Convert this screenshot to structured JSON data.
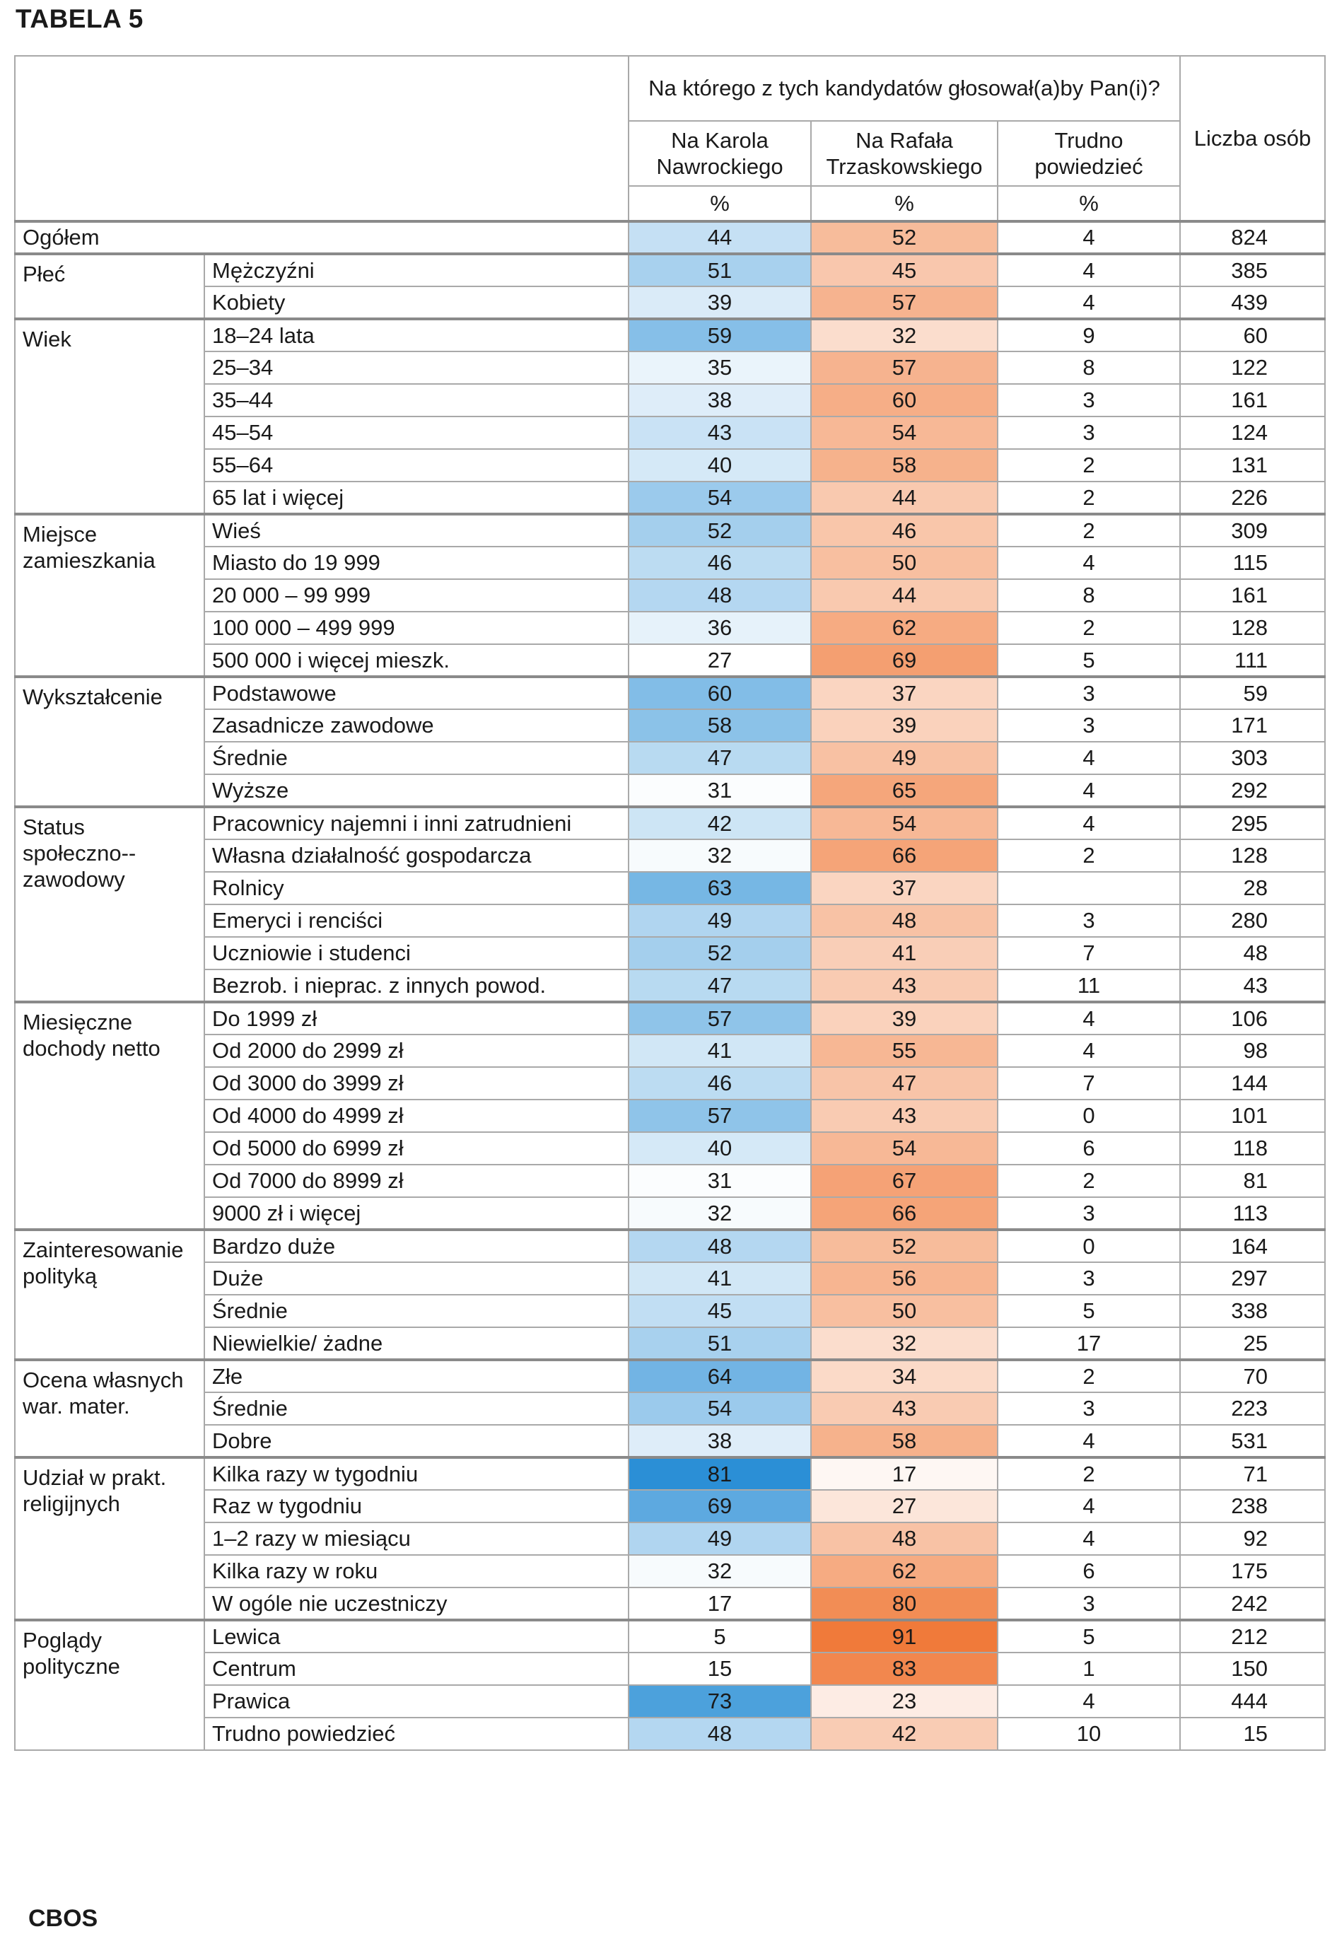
{
  "title": "TABELA 5",
  "footer": "CBOS",
  "header": {
    "question": "Na którego z tych kandydatów głosował(a)by Pan(i)?",
    "col_nawrocki": "Na Karola Nawrockiego",
    "col_trzaskowski": "Na Rafała Trzaskowskiego",
    "col_trudno": "Trudno powiedzieć",
    "col_liczba": "Liczba osób",
    "unit": "%"
  },
  "colors": {
    "blue_max": "#2b8fd6",
    "orange_max": "#f07a3a",
    "border": "#a9a9a9"
  },
  "overall": {
    "label": "Ogółem",
    "nawrocki": 44,
    "trzaskowski": 52,
    "trudno": "4",
    "liczba": 824
  },
  "groups": [
    {
      "category": "Płeć",
      "rows": [
        {
          "label": "Mężczyźni",
          "nawrocki": 51,
          "trzaskowski": 45,
          "trudno": "4",
          "liczba": 385
        },
        {
          "label": "Kobiety",
          "nawrocki": 39,
          "trzaskowski": 57,
          "trudno": "4",
          "liczba": 439
        }
      ]
    },
    {
      "category": "Wiek",
      "rows": [
        {
          "label": "18–24 lata",
          "nawrocki": 59,
          "trzaskowski": 32,
          "trudno": "9",
          "liczba": 60
        },
        {
          "label": "25–34",
          "nawrocki": 35,
          "trzaskowski": 57,
          "trudno": "8",
          "liczba": 122
        },
        {
          "label": "35–44",
          "nawrocki": 38,
          "trzaskowski": 60,
          "trudno": "3",
          "liczba": 161
        },
        {
          "label": "45–54",
          "nawrocki": 43,
          "trzaskowski": 54,
          "trudno": "3",
          "liczba": 124
        },
        {
          "label": "55–64",
          "nawrocki": 40,
          "trzaskowski": 58,
          "trudno": "2",
          "liczba": 131
        },
        {
          "label": "65 lat i więcej",
          "nawrocki": 54,
          "trzaskowski": 44,
          "trudno": "2",
          "liczba": 226
        }
      ]
    },
    {
      "category": "Miejsce zamieszkania",
      "rows": [
        {
          "label": "Wieś",
          "nawrocki": 52,
          "trzaskowski": 46,
          "trudno": "2",
          "liczba": 309
        },
        {
          "label": "Miasto do 19 999",
          "nawrocki": 46,
          "trzaskowski": 50,
          "trudno": "4",
          "liczba": 115
        },
        {
          "label": "20 000 – 99 999",
          "nawrocki": 48,
          "trzaskowski": 44,
          "trudno": "8",
          "liczba": 161
        },
        {
          "label": "100 000 – 499 999",
          "nawrocki": 36,
          "trzaskowski": 62,
          "trudno": "2",
          "liczba": 128
        },
        {
          "label": "500 000 i więcej mieszk.",
          "nawrocki": 27,
          "trzaskowski": 69,
          "trudno": "5",
          "liczba": 111
        }
      ]
    },
    {
      "category": "Wykształcenie",
      "rows": [
        {
          "label": "Podstawowe",
          "nawrocki": 60,
          "trzaskowski": 37,
          "trudno": "3",
          "liczba": 59
        },
        {
          "label": "Zasadnicze zawodowe",
          "nawrocki": 58,
          "trzaskowski": 39,
          "trudno": "3",
          "liczba": 171
        },
        {
          "label": "Średnie",
          "nawrocki": 47,
          "trzaskowski": 49,
          "trudno": "4",
          "liczba": 303
        },
        {
          "label": "Wyższe",
          "nawrocki": 31,
          "trzaskowski": 65,
          "trudno": "4",
          "liczba": 292
        }
      ]
    },
    {
      "category": "Status społeczno--zawodowy",
      "rows": [
        {
          "label": "Pracownicy najemni i inni zatrudnieni",
          "nawrocki": 42,
          "trzaskowski": 54,
          "trudno": "4",
          "liczba": 295
        },
        {
          "label": "Własna działalność gospodarcza",
          "nawrocki": 32,
          "trzaskowski": 66,
          "trudno": "2",
          "liczba": 128
        },
        {
          "label": "Rolnicy",
          "nawrocki": 63,
          "trzaskowski": 37,
          "trudno": "",
          "liczba": 28
        },
        {
          "label": "Emeryci i renciści",
          "nawrocki": 49,
          "trzaskowski": 48,
          "trudno": "3",
          "liczba": 280
        },
        {
          "label": "Uczniowie i studenci",
          "nawrocki": 52,
          "trzaskowski": 41,
          "trudno": "7",
          "liczba": 48
        },
        {
          "label": "Bezrob. i nieprac. z innych powod.",
          "nawrocki": 47,
          "trzaskowski": 43,
          "trudno": "11",
          "liczba": 43
        }
      ]
    },
    {
      "category": "Miesięczne dochody netto",
      "rows": [
        {
          "label": "Do 1999 zł",
          "nawrocki": 57,
          "trzaskowski": 39,
          "trudno": "4",
          "liczba": 106
        },
        {
          "label": "Od 2000 do 2999 zł",
          "nawrocki": 41,
          "trzaskowski": 55,
          "trudno": "4",
          "liczba": 98
        },
        {
          "label": "Od 3000 do 3999 zł",
          "nawrocki": 46,
          "trzaskowski": 47,
          "trudno": "7",
          "liczba": 144
        },
        {
          "label": "Od 4000 do 4999 zł",
          "nawrocki": 57,
          "trzaskowski": 43,
          "trudno": "0",
          "liczba": 101
        },
        {
          "label": "Od 5000 do 6999 zł",
          "nawrocki": 40,
          "trzaskowski": 54,
          "trudno": "6",
          "liczba": 118
        },
        {
          "label": "Od 7000 do 8999 zł",
          "nawrocki": 31,
          "trzaskowski": 67,
          "trudno": "2",
          "liczba": 81
        },
        {
          "label": "9000 zł i więcej",
          "nawrocki": 32,
          "trzaskowski": 66,
          "trudno": "3",
          "liczba": 113
        }
      ]
    },
    {
      "category": "Zainteresowanie polityką",
      "rows": [
        {
          "label": "Bardzo duże",
          "nawrocki": 48,
          "trzaskowski": 52,
          "trudno": "0",
          "liczba": 164
        },
        {
          "label": "Duże",
          "nawrocki": 41,
          "trzaskowski": 56,
          "trudno": "3",
          "liczba": 297
        },
        {
          "label": "Średnie",
          "nawrocki": 45,
          "trzaskowski": 50,
          "trudno": "5",
          "liczba": 338
        },
        {
          "label": "Niewielkie/ żadne",
          "nawrocki": 51,
          "trzaskowski": 32,
          "trudno": "17",
          "liczba": 25
        }
      ]
    },
    {
      "category": "Ocena własnych war. mater.",
      "rows": [
        {
          "label": "Złe",
          "nawrocki": 64,
          "trzaskowski": 34,
          "trudno": "2",
          "liczba": 70
        },
        {
          "label": "Średnie",
          "nawrocki": 54,
          "trzaskowski": 43,
          "trudno": "3",
          "liczba": 223
        },
        {
          "label": "Dobre",
          "nawrocki": 38,
          "trzaskowski": 58,
          "trudno": "4",
          "liczba": 531
        }
      ]
    },
    {
      "category": "Udział w prakt. religijnych",
      "rows": [
        {
          "label": "Kilka razy w tygodniu",
          "nawrocki": 81,
          "trzaskowski": 17,
          "trudno": "2",
          "liczba": 71
        },
        {
          "label": "Raz w tygodniu",
          "nawrocki": 69,
          "trzaskowski": 27,
          "trudno": "4",
          "liczba": 238
        },
        {
          "label": "1–2 razy w miesiącu",
          "nawrocki": 49,
          "trzaskowski": 48,
          "trudno": "4",
          "liczba": 92
        },
        {
          "label": "Kilka razy w roku",
          "nawrocki": 32,
          "trzaskowski": 62,
          "trudno": "6",
          "liczba": 175
        },
        {
          "label": "W ogóle nie uczestniczy",
          "nawrocki": 17,
          "trzaskowski": 80,
          "trudno": "3",
          "liczba": 242
        }
      ]
    },
    {
      "category": "Poglądy polityczne",
      "rows": [
        {
          "label": "Lewica",
          "nawrocki": 5,
          "trzaskowski": 91,
          "trudno": "5",
          "liczba": 212
        },
        {
          "label": "Centrum",
          "nawrocki": 15,
          "trzaskowski": 83,
          "trudno": "1",
          "liczba": 150
        },
        {
          "label": "Prawica",
          "nawrocki": 73,
          "trzaskowski": 23,
          "trudno": "4",
          "liczba": 444
        },
        {
          "label": "Trudno powiedzieć",
          "nawrocki": 48,
          "trzaskowski": 42,
          "trudno": "10",
          "liczba": 15
        }
      ]
    }
  ]
}
